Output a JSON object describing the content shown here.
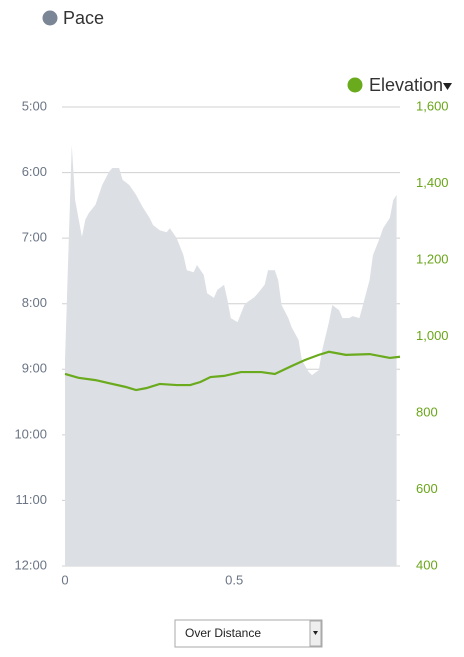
{
  "chart_data": {
    "type": "combo",
    "xlim": [
      0,
      0.99
    ],
    "xticks": [
      0,
      0.5
    ],
    "ylim": [
      5,
      12
    ],
    "y_inverted": true,
    "yticks": [
      {
        "value": 5,
        "label": "5:00"
      },
      {
        "value": 6,
        "label": "6:00"
      },
      {
        "value": 7,
        "label": "7:00"
      },
      {
        "value": 8,
        "label": "8:00"
      },
      {
        "value": 9,
        "label": "9:00"
      },
      {
        "value": 10,
        "label": "10:00"
      },
      {
        "value": 11,
        "label": "11:00"
      },
      {
        "value": 12,
        "label": "12:00"
      }
    ],
    "y2lim": [
      400,
      1600
    ],
    "y2ticks": [
      400,
      600,
      800,
      {
        "value": 1000,
        "label": "1,000"
      },
      {
        "value": 1200,
        "label": "1,200"
      },
      {
        "value": 1400,
        "label": "1,400"
      },
      {
        "value": 1600,
        "label": "1,600"
      }
    ],
    "grid": true,
    "series": [
      {
        "name": "Pace",
        "type": "area",
        "axis": "y",
        "color": "#dcdfe3",
        "marker_color": "#7a8596",
        "x": [
          0.0,
          0.02,
          0.03,
          0.05,
          0.06,
          0.07,
          0.09,
          0.11,
          0.13,
          0.14,
          0.16,
          0.17,
          0.19,
          0.21,
          0.23,
          0.25,
          0.26,
          0.28,
          0.3,
          0.31,
          0.33,
          0.35,
          0.36,
          0.38,
          0.39,
          0.41,
          0.42,
          0.44,
          0.45,
          0.47,
          0.48,
          0.49,
          0.51,
          0.53,
          0.54,
          0.56,
          0.57,
          0.59,
          0.6,
          0.62,
          0.63,
          0.64,
          0.66,
          0.67,
          0.69,
          0.7,
          0.72,
          0.73,
          0.75,
          0.76,
          0.78,
          0.79,
          0.81,
          0.82,
          0.84,
          0.85,
          0.87,
          0.88,
          0.9,
          0.91,
          0.93,
          0.94,
          0.96,
          0.97,
          0.98
        ],
        "values": [
          8.86,
          5.58,
          6.42,
          6.98,
          6.72,
          6.62,
          6.49,
          6.19,
          5.99,
          5.93,
          5.93,
          6.11,
          6.19,
          6.34,
          6.53,
          6.69,
          6.8,
          6.88,
          6.91,
          6.85,
          7.0,
          7.26,
          7.49,
          7.52,
          7.41,
          7.56,
          7.84,
          7.91,
          7.79,
          7.71,
          7.94,
          8.22,
          8.28,
          8.02,
          7.97,
          7.9,
          7.84,
          7.71,
          7.49,
          7.49,
          7.64,
          8.02,
          8.22,
          8.36,
          8.55,
          8.86,
          9.04,
          9.09,
          9.01,
          8.71,
          8.28,
          8.02,
          8.1,
          8.22,
          8.22,
          8.19,
          8.22,
          8.03,
          7.64,
          7.26,
          7.0,
          6.85,
          6.69,
          6.42,
          6.34
        ]
      },
      {
        "name": "Elevation",
        "type": "line",
        "axis": "y2",
        "color": "#6aaa1d",
        "x": [
          0.0,
          0.04,
          0.09,
          0.13,
          0.18,
          0.21,
          0.24,
          0.28,
          0.33,
          0.37,
          0.4,
          0.43,
          0.47,
          0.52,
          0.58,
          0.62,
          0.67,
          0.71,
          0.75,
          0.78,
          0.83,
          0.9,
          0.96,
          0.99
        ],
        "values": [
          902,
          892,
          886,
          878,
          868,
          860,
          865,
          876,
          873,
          873,
          881,
          894,
          897,
          907,
          907,
          902,
          923,
          939,
          952,
          960,
          952,
          954,
          944,
          947
        ]
      }
    ]
  },
  "controls": {
    "view_select": "Over Distance"
  }
}
